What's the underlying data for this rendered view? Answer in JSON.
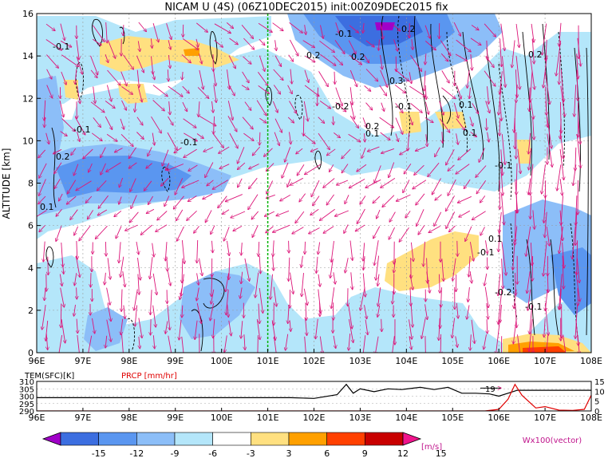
{
  "chart_data": {
    "type": "heatmap",
    "title": "NICAM U (4S) (06Z10DEC2015) init:00Z09DEC2015 fix",
    "ylabel": "ALTITUDE [km]",
    "xlabel": "",
    "x_ticks": [
      "96E",
      "97E",
      "98E",
      "99E",
      "100E",
      "101E",
      "102E",
      "103E",
      "104E",
      "105E",
      "106E",
      "107E",
      "108E"
    ],
    "y_ticks": [
      0,
      2,
      4,
      6,
      8,
      10,
      12,
      14,
      16
    ],
    "xlim": [
      96,
      108
    ],
    "ylim": [
      0,
      16
    ],
    "marker_line_x": 101,
    "colorbar": {
      "levels": [
        -15,
        -12,
        -9,
        -6,
        -3,
        3,
        6,
        9,
        12,
        15
      ],
      "unit": "[m/s]",
      "colors": [
        "#a000c8",
        "#3c6ee0",
        "#5a96f0",
        "#8cbef8",
        "#b4e6fa",
        "#ffffff",
        "#ffe080",
        "#ffa000",
        "#ff4000",
        "#c80000",
        "#f0148c"
      ]
    },
    "contour_labels": [
      "-0.1",
      "0.2",
      "-0.1",
      "0.1",
      "-0.1",
      "0.2",
      "-0.1",
      "0.2",
      "0.3",
      "-0.2",
      "0.2",
      "0.1",
      "0.2",
      "0.1",
      "-0.1",
      "0.1",
      "0.1",
      "-0.1",
      "0.2",
      "-0.1",
      "-0.2",
      "-0.1"
    ],
    "vector_label": "Wx100(vector)",
    "subplot": {
      "left_label": "TEM(SFC)[K]",
      "right_label": "PRCP [mm/hr]",
      "left_ticks": [
        290,
        295,
        300,
        305,
        310
      ],
      "right_ticks": [
        0,
        5,
        10,
        15
      ],
      "annotation": "19",
      "x_ticks": [
        "96E",
        "97E",
        "98E",
        "99E",
        "100E",
        "101E",
        "102E",
        "103E",
        "104E",
        "105E",
        "106E",
        "107E",
        "108E"
      ],
      "series": [
        {
          "name": "TEM(SFC)",
          "color": "#000000",
          "x": [
            96,
            97,
            98,
            99,
            100,
            101,
            101.5,
            102,
            102.5,
            102.7,
            102.85,
            103,
            103.3,
            103.6,
            103.9,
            104.3,
            104.6,
            104.9,
            105.2,
            105.5,
            105.8,
            106,
            106.4,
            107,
            107.5,
            108
          ],
          "y": [
            299,
            299,
            299,
            299,
            299,
            299,
            299,
            298.5,
            301,
            308,
            302,
            305,
            303,
            305,
            304.5,
            306,
            304.5,
            306,
            302,
            302,
            301.5,
            300,
            304,
            304,
            304,
            304
          ]
        },
        {
          "name": "PRCP",
          "color": "#e00000",
          "x": [
            96,
            97,
            98,
            99,
            100,
            101,
            102,
            103,
            104,
            105,
            105.7,
            106,
            106.2,
            106.35,
            106.5,
            106.8,
            107,
            107.3,
            107.6,
            107.85,
            108
          ],
          "y": [
            0,
            0,
            0,
            0,
            0,
            0,
            0,
            0,
            0,
            0,
            0,
            0.8,
            6,
            13.5,
            8,
            1.5,
            2.2,
            0.4,
            0.3,
            0.8,
            8
          ]
        }
      ]
    }
  }
}
